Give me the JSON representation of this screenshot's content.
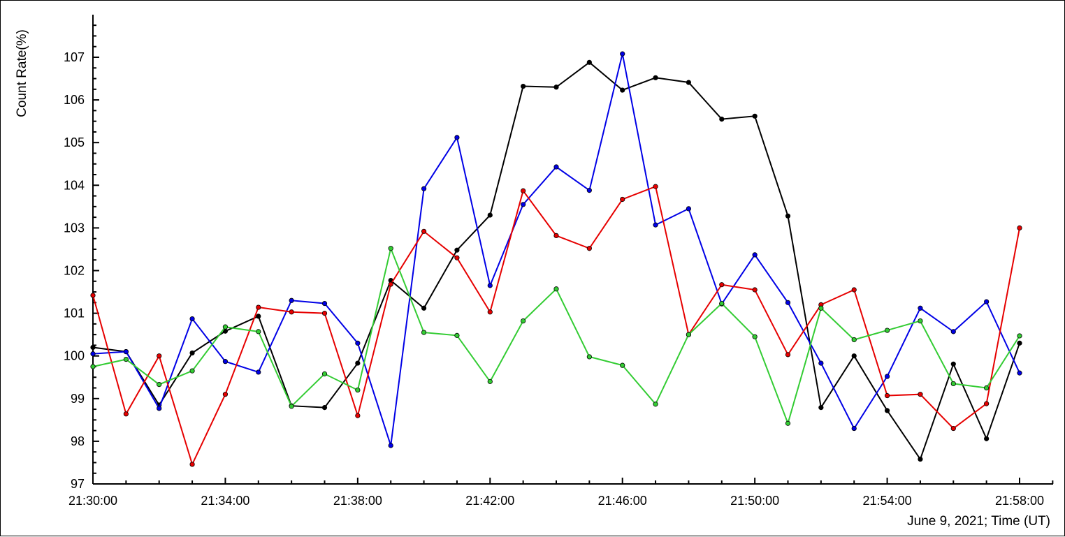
{
  "chart_data": {
    "type": "line",
    "title": "",
    "xlabel": "June 9, 2021; Time (UT)",
    "ylabel": "Count Rate(%)",
    "ylim": [
      97,
      108
    ],
    "xlim": [
      "21:30:00",
      "21:59:00"
    ],
    "grid": false,
    "legend": "none",
    "x_tick_labels": [
      "21:30:00",
      "21:34:00",
      "21:38:00",
      "21:42:00",
      "21:46:00",
      "21:50:00",
      "21:54:00",
      "21:58:00"
    ],
    "y_tick_labels": [
      "97",
      "98",
      "99",
      "100",
      "101",
      "102",
      "103",
      "104",
      "105",
      "106",
      "107"
    ],
    "x": [
      "21:30:00",
      "21:31:00",
      "21:32:00",
      "21:33:00",
      "21:34:00",
      "21:35:00",
      "21:36:00",
      "21:37:00",
      "21:38:00",
      "21:39:00",
      "21:40:00",
      "21:41:00",
      "21:42:00",
      "21:43:00",
      "21:44:00",
      "21:45:00",
      "21:46:00",
      "21:47:00",
      "21:48:00",
      "21:49:00",
      "21:50:00",
      "21:51:00",
      "21:52:00",
      "21:53:00",
      "21:54:00",
      "21:55:00",
      "21:56:00",
      "21:57:00",
      "21:58:00"
    ],
    "series": [
      {
        "color": "#000000",
        "values": [
          100.2,
          100.1,
          98.85,
          100.07,
          100.58,
          100.93,
          98.83,
          98.79,
          99.83,
          101.77,
          101.12,
          102.48,
          103.3,
          106.32,
          106.3,
          106.88,
          106.23,
          106.52,
          106.41,
          105.55,
          105.62,
          103.28,
          98.79,
          100.0,
          98.72,
          97.58,
          99.81,
          98.06,
          100.3
        ]
      },
      {
        "color": "#0000e6",
        "values": [
          100.05,
          100.1,
          98.77,
          100.87,
          99.87,
          99.62,
          101.3,
          101.23,
          100.3,
          97.9,
          103.92,
          105.12,
          101.65,
          103.55,
          104.43,
          103.88,
          107.08,
          103.07,
          103.45,
          101.22,
          102.37,
          101.25,
          99.83,
          98.3,
          99.52,
          101.12,
          100.57,
          101.27,
          99.6
        ]
      },
      {
        "color": "#e60000",
        "values": [
          101.42,
          98.64,
          100.0,
          97.46,
          99.1,
          101.14,
          101.03,
          101.0,
          98.6,
          101.68,
          102.92,
          102.3,
          101.03,
          103.87,
          102.82,
          102.52,
          103.67,
          103.97,
          100.5,
          101.67,
          101.55,
          100.03,
          101.2,
          101.55,
          99.07,
          99.1,
          98.3,
          98.88,
          103.0
        ]
      },
      {
        "color": "#33cc33",
        "values": [
          99.75,
          99.92,
          99.33,
          99.65,
          100.68,
          100.57,
          98.82,
          99.58,
          99.2,
          102.52,
          100.55,
          100.48,
          99.4,
          100.82,
          101.57,
          99.98,
          99.78,
          98.87,
          100.5,
          101.23,
          100.45,
          98.42,
          101.12,
          100.38,
          100.6,
          100.82,
          99.35,
          99.25,
          100.47
        ]
      }
    ]
  }
}
